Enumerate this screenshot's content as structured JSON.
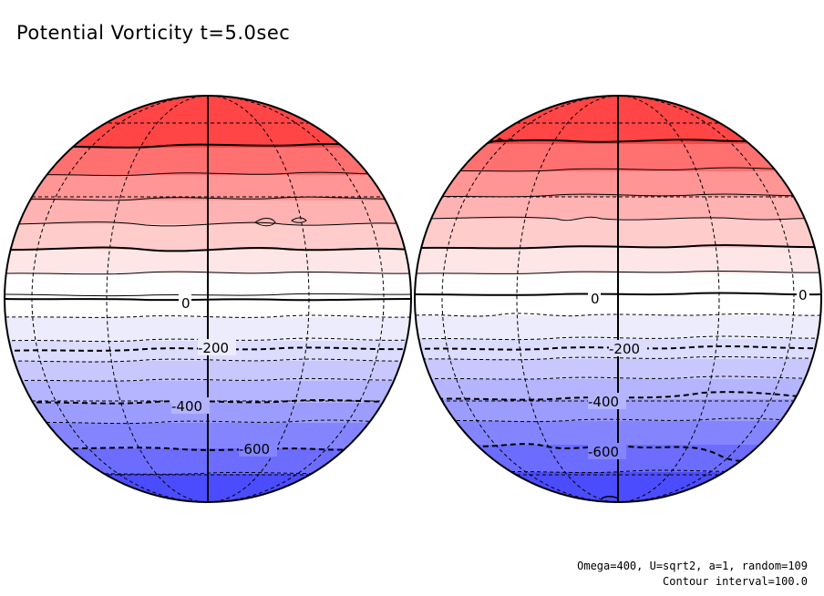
{
  "title": "Potential Vorticity t=5.0sec",
  "footer": {
    "params": "Omega=400, U=sqrt2, a=1, random=109",
    "interval": "Contour interval=100.0"
  },
  "globes": [
    {
      "name": "left",
      "labels": [
        {
          "id": "zero",
          "text": "0"
        },
        {
          "id": "m200",
          "text": "-200"
        },
        {
          "id": "m400",
          "text": "-400"
        },
        {
          "id": "m600",
          "text": "-600"
        }
      ]
    },
    {
      "name": "right",
      "labels": [
        {
          "id": "zero",
          "text": "0"
        },
        {
          "id": "zero-edge",
          "text": "0"
        },
        {
          "id": "m200",
          "text": "-200"
        },
        {
          "id": "m400",
          "text": "-400"
        },
        {
          "id": "m600",
          "text": "-600"
        }
      ]
    }
  ],
  "colors": {
    "high": "#ff4040",
    "neutral": "#ffffff",
    "low": "#4040ff",
    "line": "#000000"
  },
  "contour_interval": 100
}
